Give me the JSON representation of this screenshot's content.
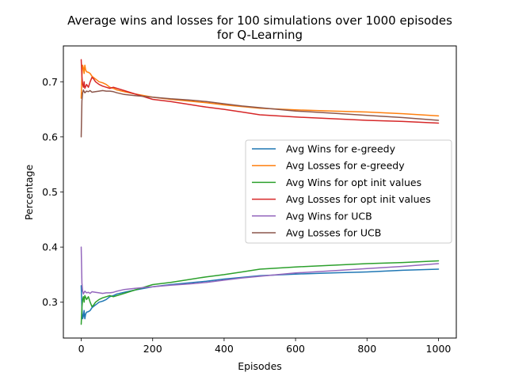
{
  "chart_data": {
    "type": "line",
    "title_line1": "Average wins and losses for 100 simulations over 1000 episodes",
    "title_line2": "for Q-Learning",
    "xlabel": "Episodes",
    "ylabel": "Percentage",
    "xlim": [
      -50,
      1050
    ],
    "ylim": [
      0.235,
      0.765
    ],
    "x_ticks": [
      0,
      200,
      400,
      600,
      800,
      1000
    ],
    "x_tick_labels": [
      "0",
      "200",
      "400",
      "600",
      "800",
      "1000"
    ],
    "y_ticks": [
      0.3,
      0.4,
      0.5,
      0.6,
      0.7
    ],
    "y_tick_labels": [
      "0.3",
      "0.4",
      "0.5",
      "0.6",
      "0.7"
    ],
    "grid": false,
    "legend_placement": "center-right",
    "series": [
      {
        "name": "Avg Wins for e-greedy",
        "color": "#1f77b4",
        "x": [
          0,
          2,
          4,
          6,
          8,
          10,
          12,
          15,
          20,
          25,
          30,
          40,
          50,
          60,
          70,
          80,
          90,
          100,
          120,
          150,
          200,
          250,
          300,
          350,
          400,
          450,
          500,
          600,
          700,
          800,
          900,
          1000
        ],
        "y": [
          0.33,
          0.29,
          0.27,
          0.275,
          0.285,
          0.27,
          0.278,
          0.282,
          0.283,
          0.285,
          0.29,
          0.295,
          0.3,
          0.302,
          0.305,
          0.31,
          0.312,
          0.315,
          0.318,
          0.322,
          0.328,
          0.332,
          0.335,
          0.338,
          0.342,
          0.345,
          0.348,
          0.351,
          0.353,
          0.355,
          0.358,
          0.36
        ]
      },
      {
        "name": "Avg Losses for e-greedy",
        "color": "#ff7f0e",
        "x": [
          0,
          2,
          4,
          6,
          8,
          10,
          12,
          15,
          20,
          25,
          30,
          40,
          50,
          60,
          70,
          80,
          90,
          100,
          120,
          150,
          200,
          250,
          300,
          350,
          400,
          450,
          500,
          600,
          700,
          800,
          900,
          1000
        ],
        "y": [
          0.67,
          0.71,
          0.73,
          0.725,
          0.715,
          0.73,
          0.722,
          0.718,
          0.717,
          0.715,
          0.71,
          0.705,
          0.7,
          0.698,
          0.695,
          0.69,
          0.688,
          0.685,
          0.682,
          0.678,
          0.672,
          0.668,
          0.665,
          0.662,
          0.658,
          0.655,
          0.652,
          0.649,
          0.647,
          0.645,
          0.642,
          0.638
        ]
      },
      {
        "name": "Avg Wins for opt init values",
        "color": "#2ca02c",
        "x": [
          0,
          2,
          4,
          6,
          8,
          10,
          15,
          20,
          25,
          30,
          35,
          40,
          50,
          60,
          70,
          80,
          90,
          100,
          120,
          150,
          200,
          250,
          300,
          350,
          400,
          450,
          500,
          600,
          700,
          800,
          900,
          1000
        ],
        "y": [
          0.26,
          0.29,
          0.305,
          0.31,
          0.3,
          0.312,
          0.305,
          0.31,
          0.3,
          0.292,
          0.295,
          0.3,
          0.305,
          0.308,
          0.31,
          0.312,
          0.31,
          0.312,
          0.316,
          0.322,
          0.332,
          0.336,
          0.341,
          0.346,
          0.35,
          0.355,
          0.36,
          0.364,
          0.367,
          0.37,
          0.372,
          0.375
        ]
      },
      {
        "name": "Avg Losses for opt init values",
        "color": "#d62728",
        "x": [
          0,
          2,
          4,
          6,
          8,
          10,
          15,
          20,
          25,
          30,
          35,
          40,
          50,
          60,
          70,
          80,
          90,
          100,
          120,
          150,
          200,
          250,
          300,
          350,
          400,
          450,
          500,
          600,
          700,
          800,
          900,
          1000
        ],
        "y": [
          0.74,
          0.71,
          0.695,
          0.69,
          0.7,
          0.688,
          0.695,
          0.69,
          0.7,
          0.708,
          0.705,
          0.7,
          0.695,
          0.692,
          0.69,
          0.688,
          0.69,
          0.688,
          0.684,
          0.678,
          0.668,
          0.664,
          0.659,
          0.654,
          0.65,
          0.645,
          0.64,
          0.636,
          0.633,
          0.63,
          0.628,
          0.625
        ]
      },
      {
        "name": "Avg Wins for UCB",
        "color": "#9467bd",
        "x": [
          0,
          2,
          4,
          6,
          8,
          10,
          15,
          20,
          25,
          30,
          40,
          50,
          60,
          70,
          80,
          90,
          100,
          120,
          150,
          200,
          250,
          300,
          350,
          400,
          450,
          500,
          600,
          700,
          800,
          900,
          1000
        ],
        "y": [
          0.4,
          0.335,
          0.32,
          0.315,
          0.318,
          0.32,
          0.317,
          0.318,
          0.316,
          0.319,
          0.318,
          0.317,
          0.316,
          0.317,
          0.317,
          0.318,
          0.32,
          0.323,
          0.325,
          0.328,
          0.331,
          0.333,
          0.336,
          0.34,
          0.344,
          0.347,
          0.353,
          0.357,
          0.361,
          0.365,
          0.37
        ]
      },
      {
        "name": "Avg Losses for UCB",
        "color": "#8c564b",
        "x": [
          0,
          2,
          4,
          6,
          8,
          10,
          15,
          20,
          25,
          30,
          40,
          50,
          60,
          70,
          80,
          90,
          100,
          120,
          150,
          200,
          250,
          300,
          350,
          400,
          450,
          500,
          600,
          700,
          800,
          900,
          1000
        ],
        "y": [
          0.6,
          0.665,
          0.68,
          0.685,
          0.682,
          0.68,
          0.683,
          0.682,
          0.684,
          0.681,
          0.682,
          0.683,
          0.684,
          0.683,
          0.683,
          0.682,
          0.68,
          0.677,
          0.675,
          0.672,
          0.669,
          0.667,
          0.664,
          0.66,
          0.656,
          0.653,
          0.647,
          0.643,
          0.639,
          0.635,
          0.63
        ]
      }
    ]
  }
}
